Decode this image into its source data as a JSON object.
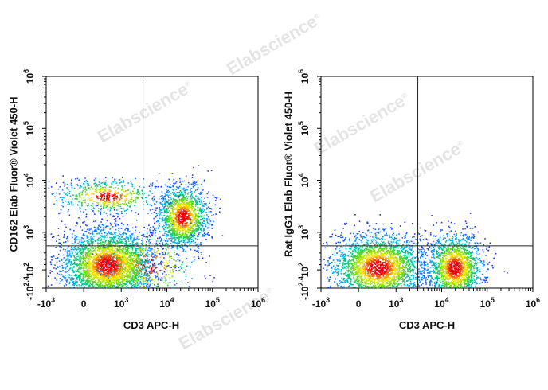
{
  "watermark": "Elabscience",
  "watermark_mark": "®",
  "colors": {
    "density_low": "#1f2bff",
    "density_mid": "#00c8a0",
    "density_high": "#ffea00",
    "density_peak": "#e8000b",
    "gate_line": "#222222",
    "axis": "#000000"
  },
  "chart_data": [
    {
      "type": "scatter",
      "subtype": "flow-cytometry-density-plot",
      "xlabel": "CD3 APC-H",
      "ylabel": "CD162 Elab Fluor® Violet 450-H",
      "x_scale": "biexponential",
      "y_scale": "biexponential",
      "xlim": [
        -1000,
        1000000
      ],
      "ylim": [
        -251,
        1000000
      ],
      "x_ticks": [
        {
          "value": -1000,
          "base": "-10",
          "exp": "3"
        },
        {
          "value": 0,
          "base": "0",
          "exp": ""
        },
        {
          "value": 1000,
          "base": "10",
          "exp": "3"
        },
        {
          "value": 10000,
          "base": "10",
          "exp": "4"
        },
        {
          "value": 100000,
          "base": "10",
          "exp": "5"
        },
        {
          "value": 1000000,
          "base": "10",
          "exp": "6"
        }
      ],
      "y_ticks": [
        {
          "value": -251,
          "base": "-10",
          "exp": "2.4"
        },
        {
          "value": 100,
          "base": "10",
          "exp": "2"
        },
        {
          "value": 1000,
          "base": "10",
          "exp": "3"
        },
        {
          "value": 10000,
          "base": "10",
          "exp": "4"
        },
        {
          "value": 100000,
          "base": "10",
          "exp": "5"
        },
        {
          "value": 1000000,
          "base": "10",
          "exp": "6"
        }
      ],
      "gate": {
        "x": 3000,
        "y": 550
      },
      "populations": [
        {
          "x": 500,
          "y": 200,
          "count": 3200,
          "sx": 0.11,
          "sy": 0.085
        },
        {
          "x": 22000,
          "y": 2000,
          "count": 1500,
          "sx": 0.06,
          "sy": 0.075
        },
        {
          "x": 500,
          "y": 5000,
          "count": 550,
          "sx": 0.12,
          "sy": 0.04
        },
        {
          "x": 4000,
          "y": 200,
          "count": 420,
          "sx": 0.11,
          "sy": 0.09
        }
      ]
    },
    {
      "type": "scatter",
      "subtype": "flow-cytometry-density-plot",
      "xlabel": "CD3 APC-H",
      "ylabel": "Rat IgG1 Elab Fluor® Violet 450-H",
      "x_scale": "biexponential",
      "y_scale": "biexponential",
      "xlim": [
        -1000,
        1000000
      ],
      "ylim": [
        -251,
        1000000
      ],
      "x_ticks": [
        {
          "value": -1000,
          "base": "-10",
          "exp": "3"
        },
        {
          "value": 0,
          "base": "0",
          "exp": ""
        },
        {
          "value": 1000,
          "base": "10",
          "exp": "3"
        },
        {
          "value": 10000,
          "base": "10",
          "exp": "4"
        },
        {
          "value": 100000,
          "base": "10",
          "exp": "5"
        },
        {
          "value": 1000000,
          "base": "10",
          "exp": "6"
        }
      ],
      "y_ticks": [
        {
          "value": -251,
          "base": "-10",
          "exp": "2.4"
        },
        {
          "value": 100,
          "base": "10",
          "exp": "2"
        },
        {
          "value": 1000,
          "base": "10",
          "exp": "3"
        },
        {
          "value": 10000,
          "base": "10",
          "exp": "4"
        },
        {
          "value": 100000,
          "base": "10",
          "exp": "5"
        },
        {
          "value": 1000000,
          "base": "10",
          "exp": "6"
        }
      ],
      "gate": {
        "x": 3000,
        "y": 550
      },
      "populations": [
        {
          "x": 400,
          "y": 150,
          "count": 2600,
          "sx": 0.11,
          "sy": 0.08
        },
        {
          "x": 19000,
          "y": 150,
          "count": 1700,
          "sx": 0.065,
          "sy": 0.08
        }
      ]
    }
  ]
}
